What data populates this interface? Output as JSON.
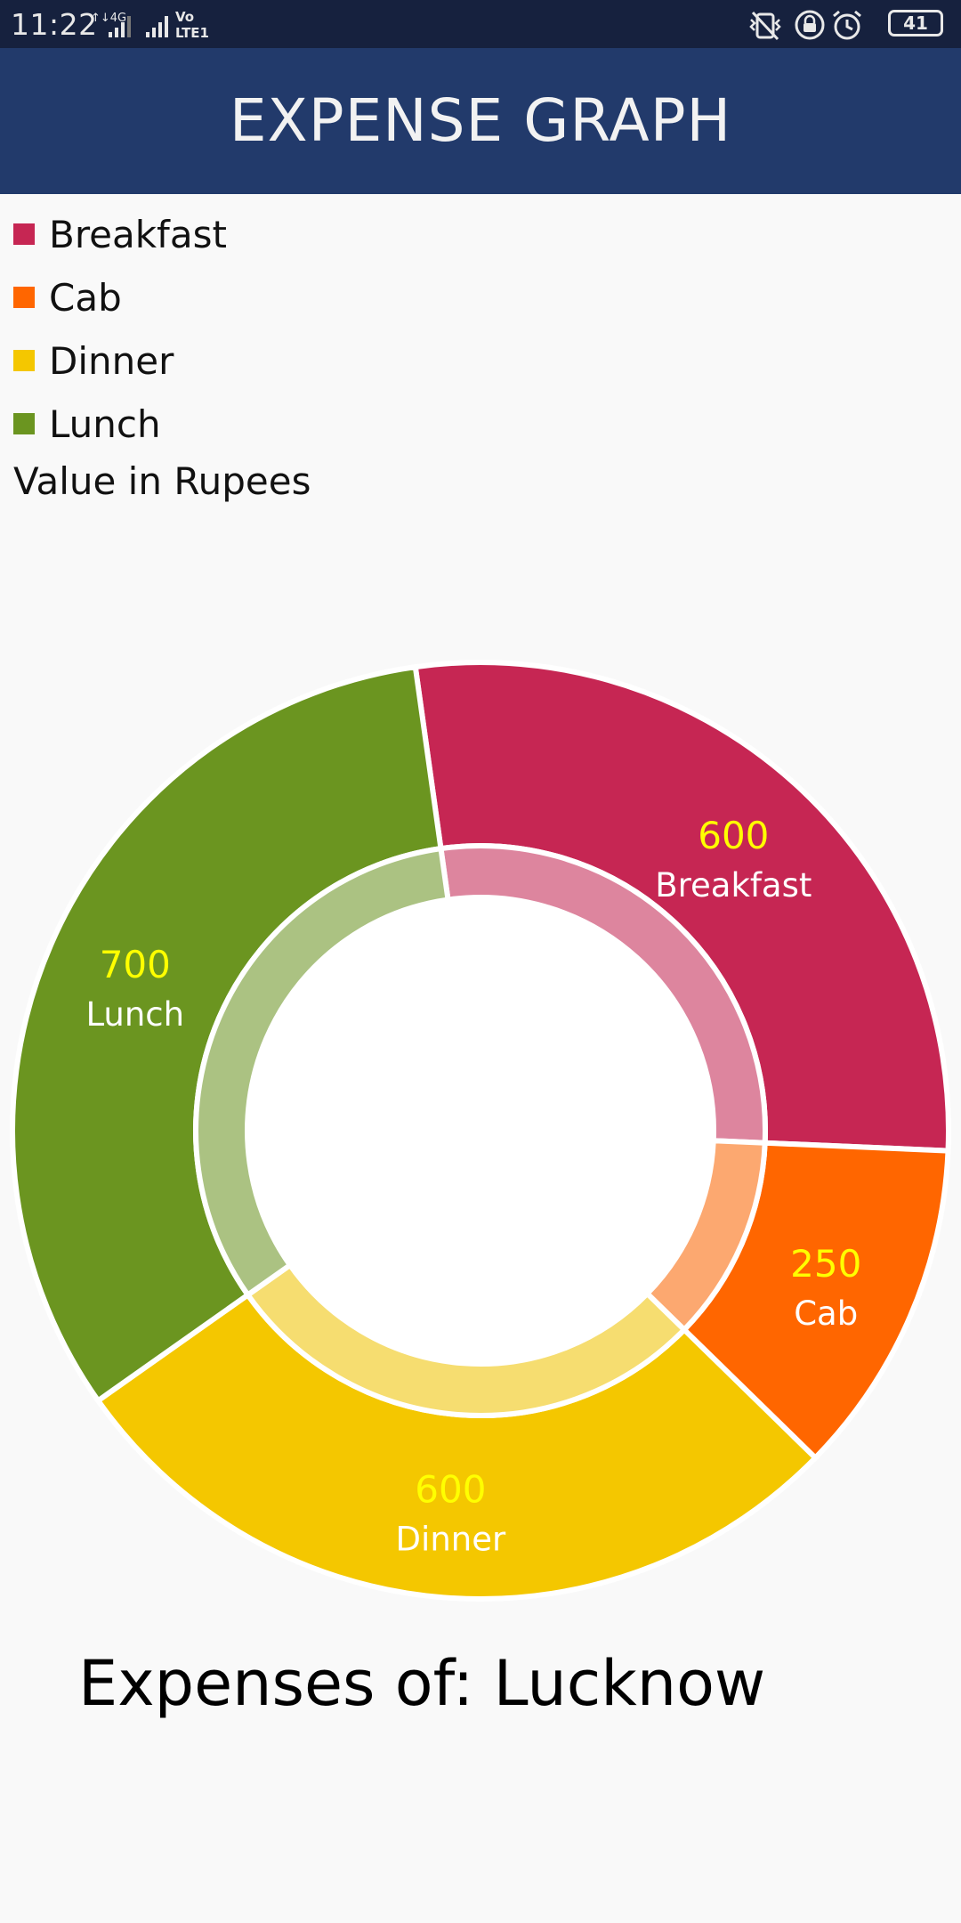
{
  "status_bar": {
    "time": "11:22",
    "battery": "41"
  },
  "app_bar": {
    "title": "EXPENSE GRAPH"
  },
  "legend": {
    "items": [
      {
        "label": "Breakfast",
        "color": "#c62653"
      },
      {
        "label": "Cab",
        "color": "#ff6600"
      },
      {
        "label": "Dinner",
        "color": "#f4c700"
      },
      {
        "label": "Lunch",
        "color": "#6b9520"
      }
    ],
    "description": "Value in Rupees"
  },
  "chart_data": {
    "type": "pie",
    "style": "donut",
    "categories": [
      "Breakfast",
      "Cab",
      "Dinner",
      "Lunch"
    ],
    "values": [
      600,
      250,
      600,
      700
    ],
    "colors": [
      "#c62653",
      "#ff6600",
      "#f4c700",
      "#6b9520"
    ],
    "value_label_color": "#ffff00",
    "category_label_color": "#ffffff"
  },
  "footer": {
    "title": "Expenses of: Lucknow"
  }
}
